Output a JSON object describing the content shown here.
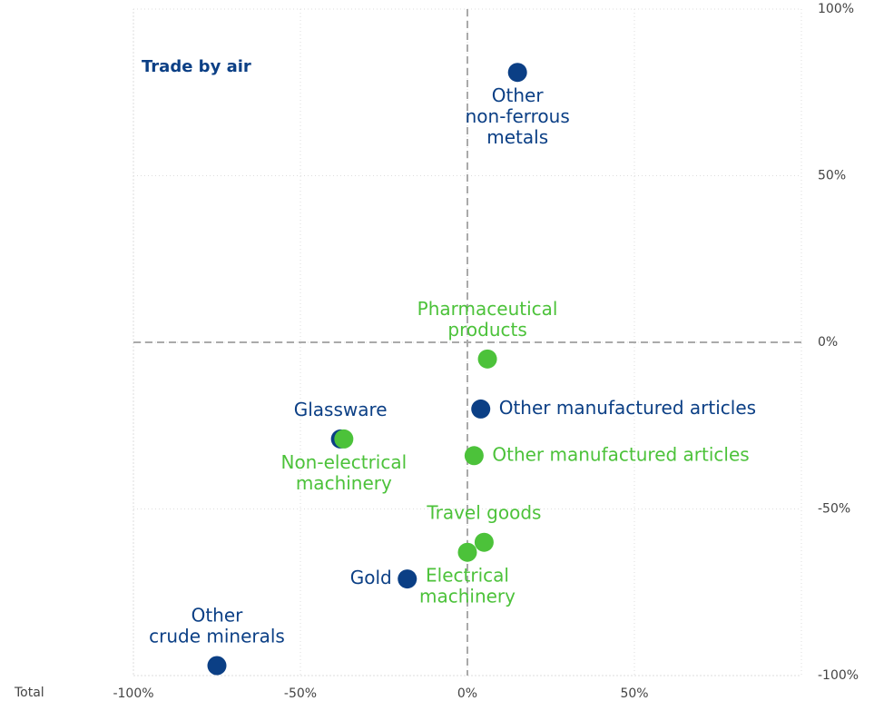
{
  "chart_data": {
    "type": "scatter",
    "title": "Trade by air",
    "footer": "Total",
    "xlim": [
      -100,
      100
    ],
    "ylim": [
      -100,
      100
    ],
    "xticks": [
      {
        "value": -100,
        "label": "-100%"
      },
      {
        "value": -50,
        "label": "-50%"
      },
      {
        "value": 0,
        "label": "0%"
      },
      {
        "value": 50,
        "label": "50%"
      }
    ],
    "yticks": [
      {
        "value": 100,
        "label": "100%"
      },
      {
        "value": 50,
        "label": "50%"
      },
      {
        "value": 0,
        "label": "0%"
      },
      {
        "value": -50,
        "label": "-50%"
      },
      {
        "value": -100,
        "label": "-100%"
      }
    ],
    "grid": true,
    "series": [
      {
        "color": "#0b3f85",
        "x": [
          15,
          4,
          -38,
          -18,
          -75
        ],
        "values": [
          81,
          -20,
          -29,
          -71,
          -97
        ],
        "labels": [
          [
            "Other",
            "non-ferrous",
            "metals"
          ],
          [
            "Other manufactured articles"
          ],
          [
            "Glassware"
          ],
          [
            "Gold"
          ],
          [
            "Other",
            "crude minerals"
          ]
        ]
      },
      {
        "color": "#4cc23a",
        "x": [
          6,
          2,
          -37,
          5,
          0
        ],
        "values": [
          -5,
          -34,
          -29,
          -60,
          -63
        ],
        "labels": [
          [
            "Pharmaceutical",
            "products"
          ],
          [
            "Other manufactured articles"
          ],
          [
            "Non-electrical",
            "machinery"
          ],
          [
            "Travel goods"
          ],
          [
            "Electrical",
            "machinery"
          ]
        ]
      }
    ]
  }
}
